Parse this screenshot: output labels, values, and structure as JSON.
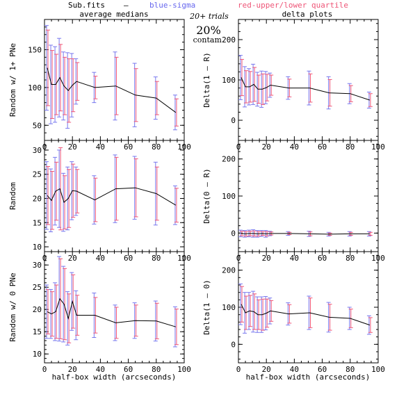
{
  "header": {
    "file_label": "Sub.fits",
    "dash": "–",
    "blue_label": "blue-sigma",
    "red_label": "red-upper/lower quartile",
    "blue_color": "#6666ee",
    "red_color": "#ee5577"
  },
  "column_titles": {
    "left": "average medians",
    "right": "delta plots"
  },
  "annotation": {
    "trials": "20+ trials",
    "percent": "20%",
    "contam": "contam."
  },
  "xlabel": "half-box width (arcseconds)",
  "colors": {
    "line": "#000000",
    "sigma": "#7777ee",
    "quartile": "#ee5577"
  },
  "chart_data": [
    {
      "type": "line",
      "id": "p00",
      "ylabel": "Random w/ 1+ PNe",
      "xlim": [
        0,
        100
      ],
      "ylim": [
        30,
        190
      ],
      "xticks": [
        0,
        20,
        40,
        60,
        80,
        100
      ],
      "yticks": [
        50,
        100,
        150
      ],
      "x": [
        2,
        5,
        8,
        11,
        14,
        17,
        20,
        23,
        36,
        51,
        65,
        80,
        94
      ],
      "y": [
        126,
        104,
        104,
        113,
        102,
        96,
        103,
        108,
        100,
        102,
        90,
        86,
        67
      ],
      "sigma": [
        56,
        52,
        50,
        52,
        45,
        50,
        42,
        30,
        20,
        45,
        42,
        28,
        23
      ],
      "quartile": [
        50,
        45,
        40,
        44,
        38,
        42,
        35,
        25,
        15,
        38,
        35,
        22,
        18
      ]
    },
    {
      "type": "line",
      "id": "p01",
      "ylabel": "Delta(1 – R)",
      "xlim": [
        0,
        100
      ],
      "ylim": [
        -50,
        250
      ],
      "xticks": [
        0,
        20,
        40,
        60,
        80,
        100
      ],
      "yticks": [
        0,
        100,
        200
      ],
      "x": [
        2,
        5,
        8,
        11,
        14,
        17,
        20,
        23,
        36,
        51,
        65,
        80,
        94
      ],
      "y": [
        106,
        83,
        83,
        89,
        77,
        77,
        81,
        87,
        80,
        80,
        68,
        66,
        50
      ],
      "sigma": [
        55,
        50,
        45,
        50,
        42,
        45,
        40,
        30,
        28,
        42,
        40,
        25,
        20
      ],
      "quartile": [
        45,
        40,
        38,
        42,
        35,
        38,
        33,
        25,
        22,
        35,
        33,
        20,
        16
      ]
    },
    {
      "type": "line",
      "id": "p10",
      "ylabel": "Random",
      "xlim": [
        0,
        100
      ],
      "ylim": [
        9,
        32
      ],
      "xticks": [
        0,
        20,
        40,
        60,
        80,
        100
      ],
      "yticks": [
        10,
        15,
        20,
        25,
        30
      ],
      "x": [
        2,
        5,
        8,
        11,
        14,
        17,
        20,
        23,
        36,
        51,
        65,
        80,
        94
      ],
      "y": [
        20.6,
        19.6,
        21.5,
        22.0,
        19.2,
        20.0,
        21.6,
        21.5,
        19.7,
        22.0,
        22.2,
        21.0,
        18.6
      ],
      "sigma": [
        7,
        6.5,
        7,
        8,
        6,
        6.5,
        6,
        5,
        5,
        7,
        6.5,
        6.5,
        4
      ],
      "quartile": [
        6,
        6,
        6,
        8.5,
        5.5,
        6,
        5.5,
        4.5,
        4.5,
        6.5,
        6,
        5.5,
        3.5
      ]
    },
    {
      "type": "line",
      "id": "p11",
      "ylabel": "Delta(0 – R)",
      "xlim": [
        0,
        100
      ],
      "ylim": [
        -50,
        250
      ],
      "xticks": [
        0,
        20,
        40,
        60,
        80,
        100
      ],
      "yticks": [
        0,
        100,
        200
      ],
      "x": [
        2,
        5,
        8,
        11,
        14,
        17,
        20,
        23,
        36,
        51,
        65,
        80,
        94
      ],
      "y": [
        -1,
        -2,
        -1,
        -1,
        -2,
        -1,
        -2,
        -1,
        -1,
        -2,
        -3,
        -2,
        -2
      ],
      "sigma": [
        9,
        9,
        9,
        10,
        9,
        8,
        9,
        6,
        5,
        7,
        5,
        6,
        6
      ],
      "quartile": [
        6,
        6,
        6,
        7,
        6,
        5,
        6,
        4,
        3,
        5,
        3,
        4,
        4
      ]
    },
    {
      "type": "line",
      "id": "p20",
      "ylabel": "Random w/ 0 PNe",
      "xlim": [
        0,
        100
      ],
      "ylim": [
        8,
        33
      ],
      "xticks": [
        0,
        20,
        40,
        60,
        80,
        100
      ],
      "yticks": [
        10,
        15,
        20,
        25,
        30
      ],
      "x": [
        2,
        5,
        8,
        11,
        14,
        17,
        20,
        23,
        36,
        51,
        65,
        80,
        94
      ],
      "y": [
        19.5,
        19.0,
        19.5,
        22.4,
        21.2,
        18.0,
        21.8,
        18.7,
        18.7,
        17.0,
        17.5,
        17.4,
        16.1
      ],
      "sigma": [
        6,
        5.5,
        6.5,
        9.5,
        8.5,
        6,
        6.5,
        5.5,
        5,
        4,
        4,
        4.5,
        4.5
      ],
      "quartile": [
        5,
        5,
        6,
        9,
        8,
        5.5,
        6,
        4.5,
        4,
        3.5,
        3.5,
        4,
        4
      ]
    },
    {
      "type": "line",
      "id": "p21",
      "ylabel": "Delta(1 – 0)",
      "xlim": [
        0,
        100
      ],
      "ylim": [
        -50,
        250
      ],
      "xticks": [
        0,
        20,
        40,
        60,
        80,
        100
      ],
      "yticks": [
        0,
        100,
        200
      ],
      "x": [
        2,
        5,
        8,
        11,
        14,
        17,
        20,
        23,
        36,
        51,
        65,
        80,
        94
      ],
      "y": [
        108,
        85,
        90,
        88,
        80,
        80,
        84,
        90,
        82,
        85,
        73,
        70,
        52
      ],
      "sigma": [
        55,
        55,
        50,
        55,
        48,
        48,
        45,
        35,
        30,
        45,
        40,
        30,
        25
      ],
      "quartile": [
        48,
        45,
        42,
        48,
        40,
        42,
        38,
        28,
        25,
        40,
        35,
        25,
        20
      ]
    }
  ]
}
